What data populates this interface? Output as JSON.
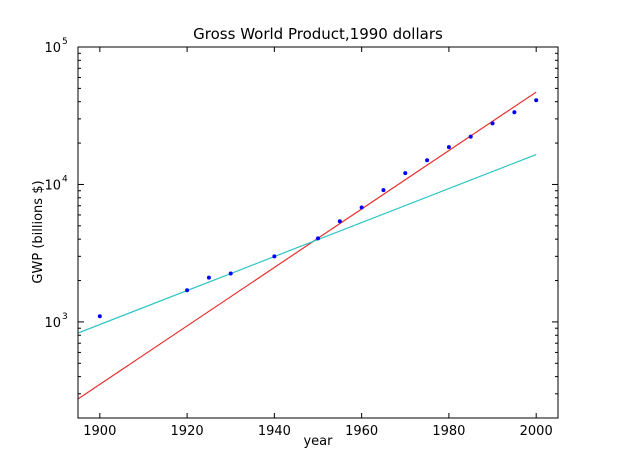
{
  "chart_data": {
    "type": "scatter",
    "title": "Gross World Product,1990 dollars",
    "xlabel": "year",
    "ylabel": "GWP (billions $)",
    "xlim": [
      1895,
      2005
    ],
    "ylim": [
      200,
      100000
    ],
    "yscale": "log",
    "xticks": [
      1900,
      1920,
      1940,
      1960,
      1980,
      2000
    ],
    "xtick_labels": [
      "1900",
      "1920",
      "1940",
      "1960",
      "1980",
      "2000"
    ],
    "yticks": [
      1000,
      10000,
      100000
    ],
    "ytick_labels": [
      {
        "base": "10",
        "exp": "3"
      },
      {
        "base": "10",
        "exp": "4"
      },
      {
        "base": "10",
        "exp": "5"
      }
    ],
    "grid": false,
    "colors": {
      "points": "#0000ff",
      "red_fit": "#e8312f",
      "cyan_fit": "#2bc4c4"
    },
    "points": {
      "x": [
        1900,
        1920,
        1925,
        1930,
        1940,
        1950,
        1955,
        1960,
        1965,
        1970,
        1975,
        1980,
        1985,
        1990,
        1995,
        2000
      ],
      "y": [
        1100,
        1700,
        2100,
        2250,
        3000,
        4050,
        5400,
        6800,
        9100,
        12100,
        15000,
        18700,
        22300,
        27800,
        33500,
        41000
      ]
    },
    "fit_lines": [
      {
        "color": "#e8312f",
        "x": [
          1895,
          2000
        ],
        "y": [
          275,
          47000
        ]
      },
      {
        "color": "#2bc4c4",
        "x": [
          1895,
          2000
        ],
        "y": [
          830,
          16500
        ]
      }
    ]
  }
}
